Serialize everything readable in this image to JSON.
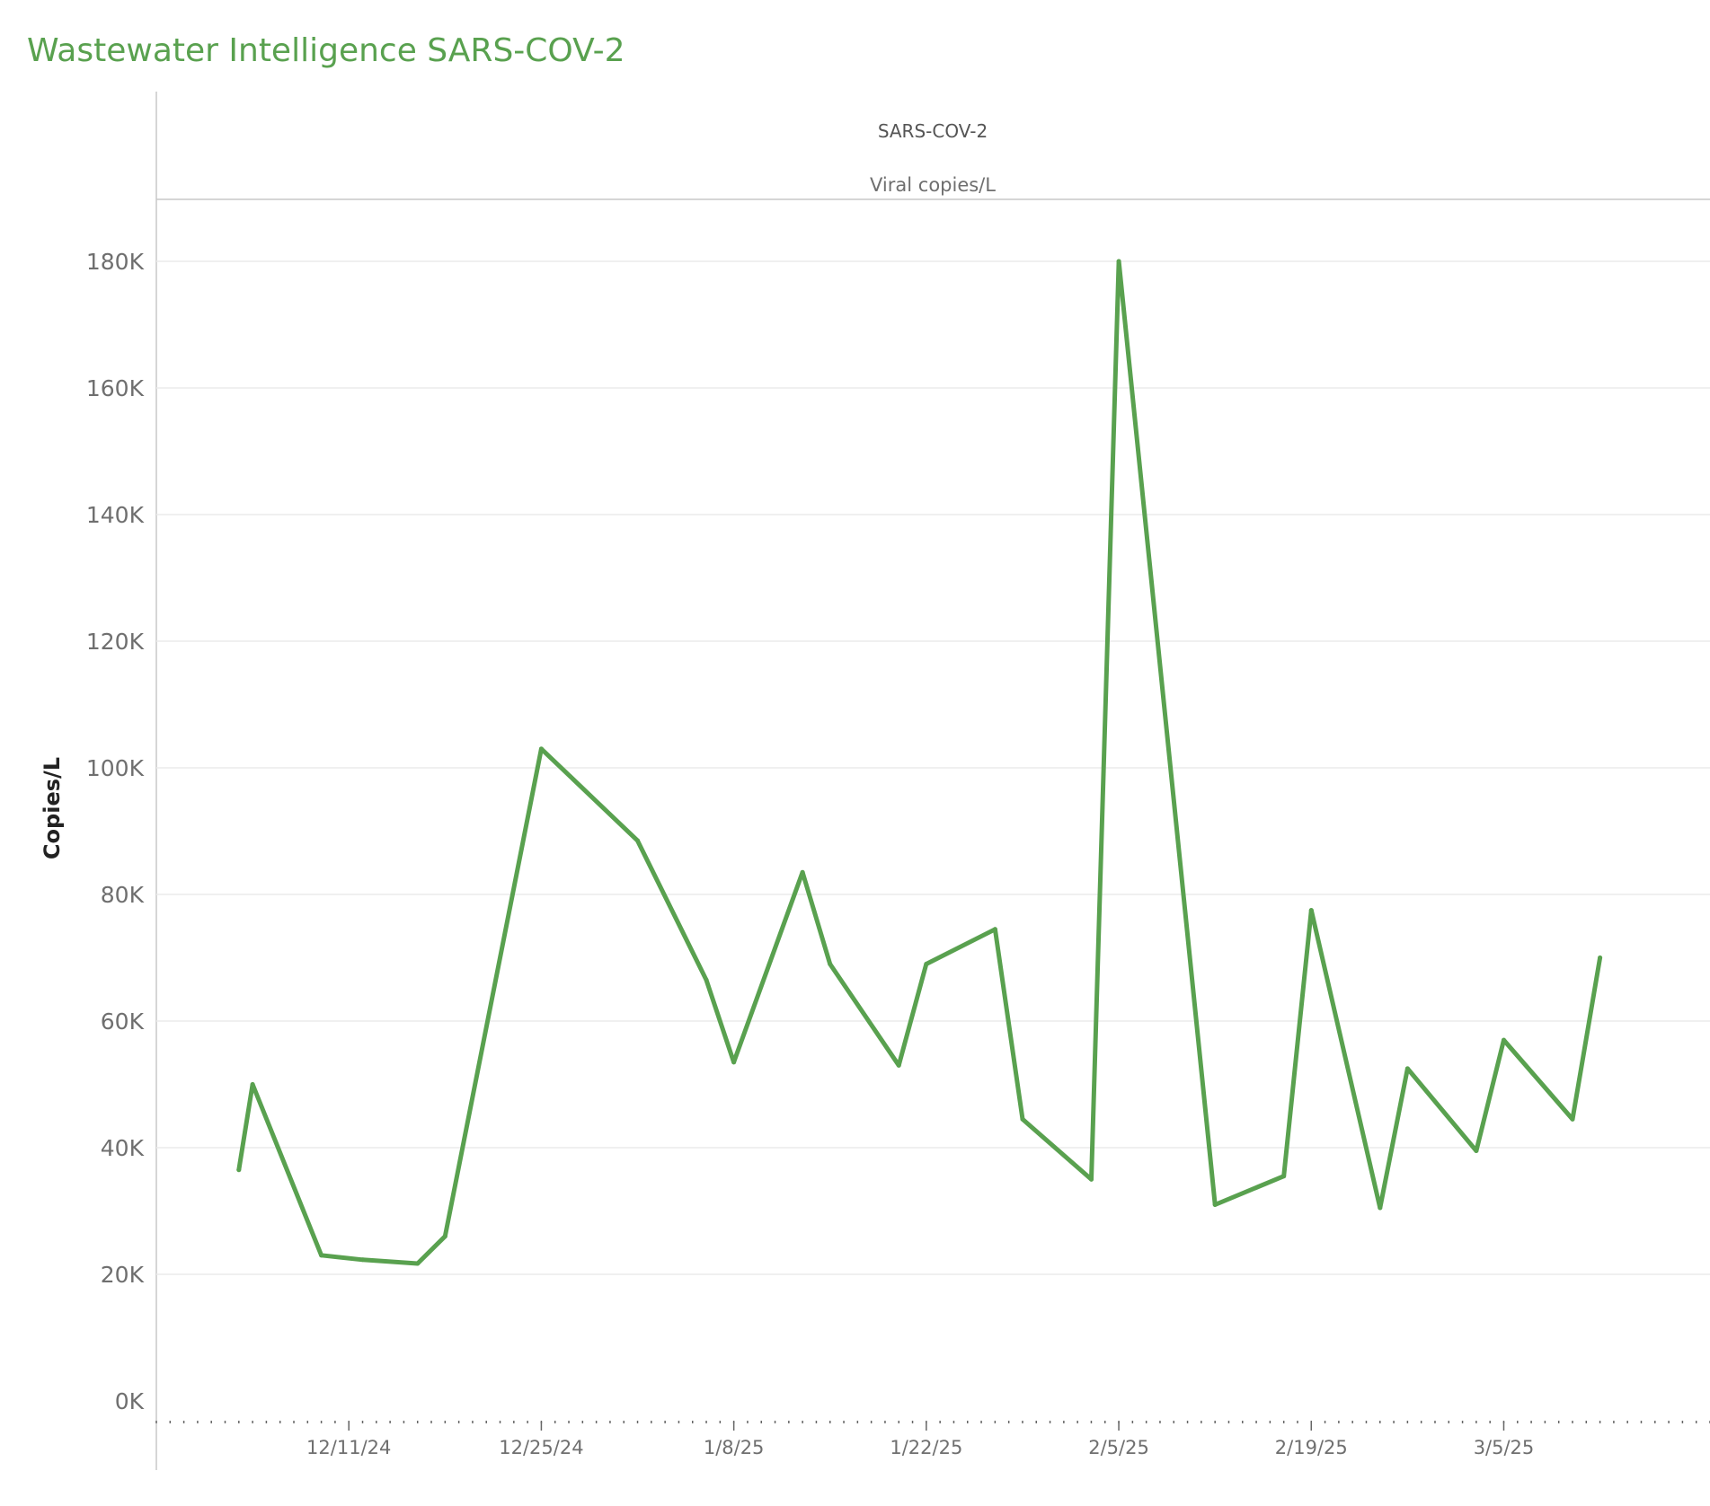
{
  "page": {
    "title": "Wastewater Intelligence SARS-COV-2"
  },
  "colors": {
    "line": "#59a14f",
    "title": "#59a14f",
    "grid": "#ececec",
    "axis": "#c8c8c8"
  },
  "chart_data": {
    "type": "line",
    "title": "SARS-COV-2",
    "subtitle": "Viral copies/L",
    "xlabel": "",
    "ylabel": "Copies/L",
    "ylim": [
      0,
      180000
    ],
    "y_ticks": [
      0,
      20000,
      40000,
      60000,
      80000,
      100000,
      120000,
      140000,
      160000,
      180000
    ],
    "y_tick_labels": [
      "0K",
      "20K",
      "40K",
      "60K",
      "80K",
      "100K",
      "120K",
      "140K",
      "160K",
      "180K"
    ],
    "xlim": [
      "2024-11-27",
      "2025-03-20"
    ],
    "x_ticks": [
      "2024-12-11",
      "2024-12-25",
      "2025-01-08",
      "2025-01-22",
      "2025-02-05",
      "2025-02-19",
      "2025-03-05"
    ],
    "x_tick_labels": [
      "12/11/24",
      "12/25/24",
      "1/8/25",
      "1/22/25",
      "2/5/25",
      "2/19/25",
      "3/5/25"
    ],
    "grid": true,
    "legend": "none",
    "series": [
      {
        "points": [
          [
            "2024-12-03",
            36500
          ],
          [
            "2024-12-04",
            50000
          ],
          [
            "2024-12-09",
            23000
          ],
          [
            "2024-12-12",
            22300
          ],
          [
            "2024-12-16",
            21700
          ],
          [
            "2024-12-18",
            26000
          ],
          [
            "2024-12-25",
            103000
          ],
          [
            "2025-01-01",
            88500
          ],
          [
            "2025-01-06",
            66500
          ],
          [
            "2025-01-08",
            53500
          ],
          [
            "2025-01-13",
            83500
          ],
          [
            "2025-01-15",
            69000
          ],
          [
            "2025-01-20",
            53000
          ],
          [
            "2025-01-22",
            69000
          ],
          [
            "2025-01-27",
            74500
          ],
          [
            "2025-01-29",
            44500
          ],
          [
            "2025-02-03",
            35000
          ],
          [
            "2025-02-05",
            180000
          ],
          [
            "2025-02-12",
            31000
          ],
          [
            "2025-02-17",
            35500
          ],
          [
            "2025-02-19",
            77500
          ],
          [
            "2025-02-24",
            30500
          ],
          [
            "2025-02-26",
            52500
          ],
          [
            "2025-03-03",
            39500
          ],
          [
            "2025-03-05",
            57000
          ],
          [
            "2025-03-10",
            44500
          ],
          [
            "2025-03-12",
            70000
          ]
        ]
      }
    ]
  }
}
